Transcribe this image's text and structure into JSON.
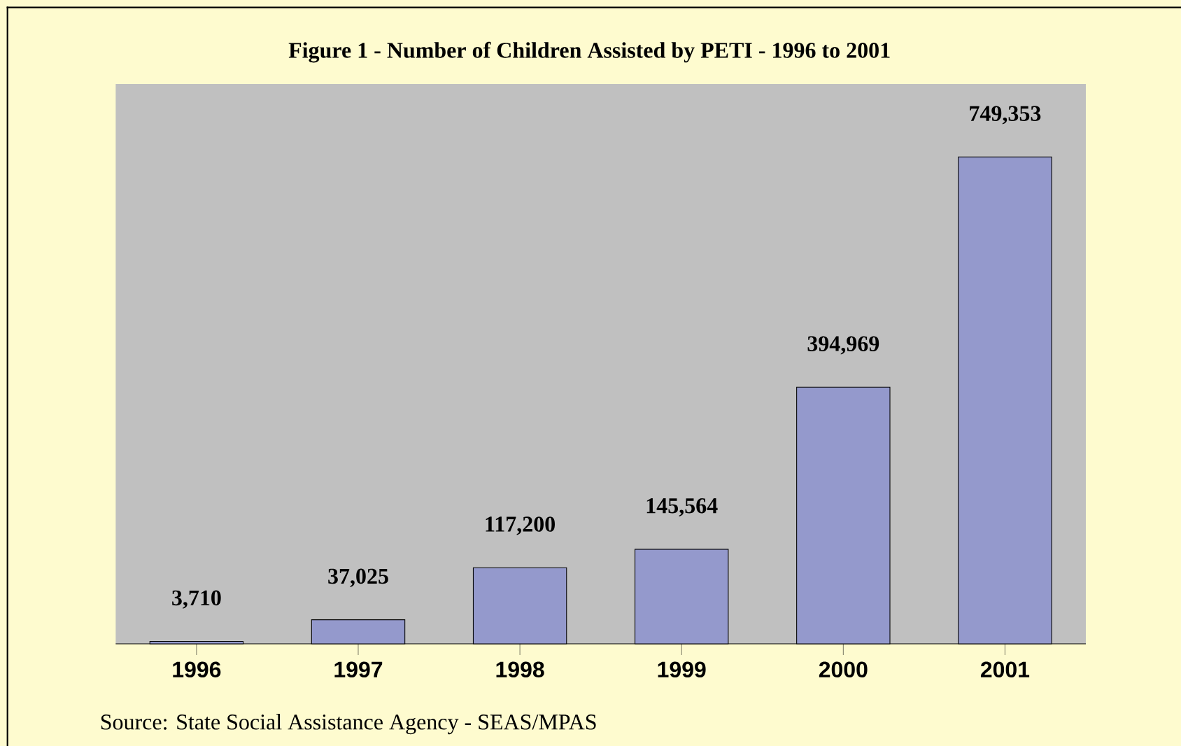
{
  "chart_data": {
    "type": "bar",
    "title": "Figure 1 - Number of Children Assisted by PETI - 1996 to 2001",
    "categories": [
      "1996",
      "1997",
      "1998",
      "1999",
      "2000",
      "2001"
    ],
    "values": [
      3710,
      37025,
      117200,
      145564,
      394969,
      749353
    ],
    "value_labels": [
      "3,710",
      "37,025",
      "117,200",
      "145,564",
      "394,969",
      "749,353"
    ],
    "color": "#9499cc",
    "annotations": [
      "Source: State Social Assistance Agency - SEAS/MPAS"
    ]
  }
}
